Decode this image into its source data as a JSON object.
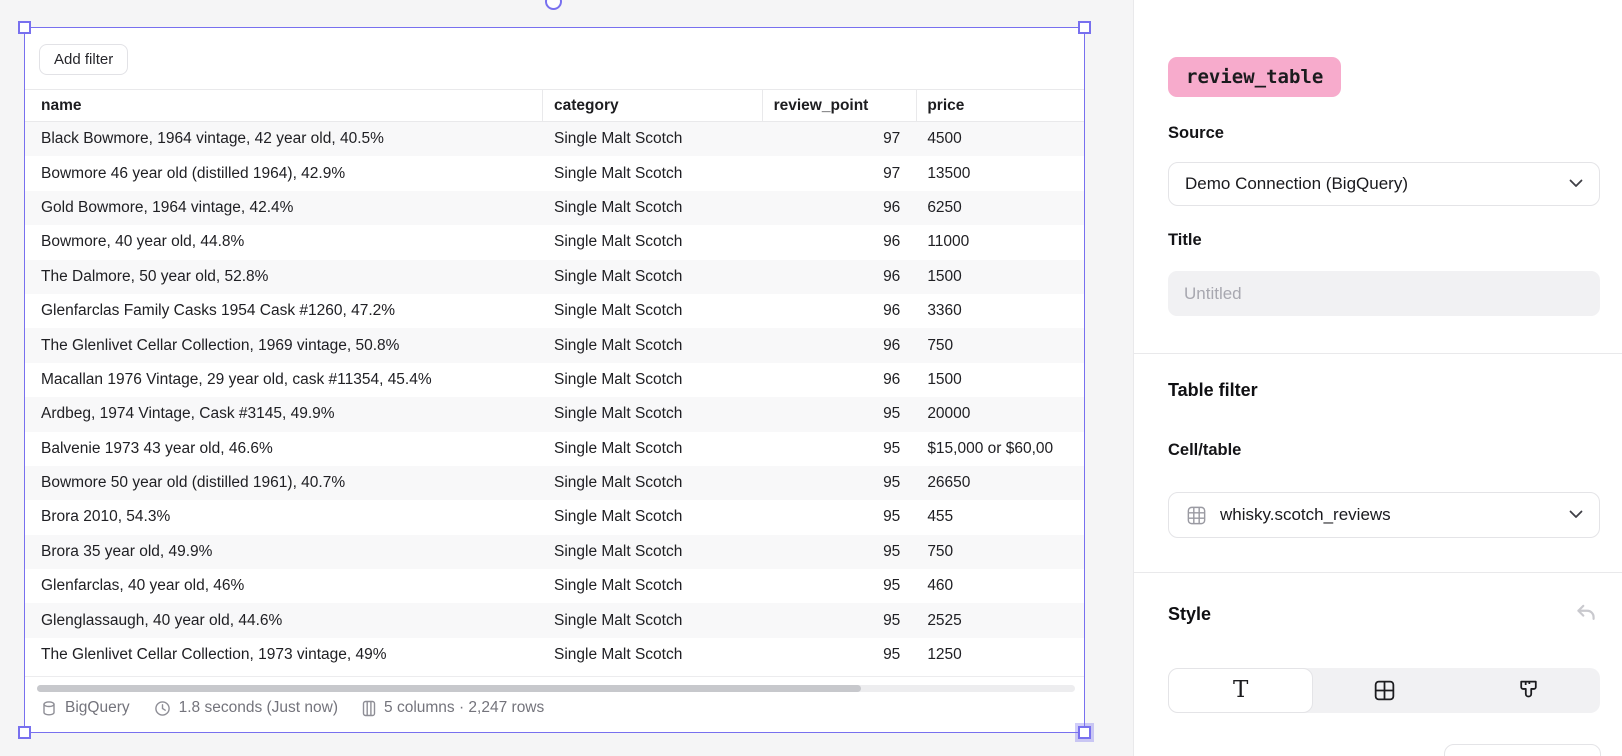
{
  "canvas": {
    "toolbar": {
      "add_filter_label": "Add filter"
    },
    "table": {
      "columns": [
        {
          "key": "name",
          "label": "name",
          "align": "left"
        },
        {
          "key": "category",
          "label": "category",
          "align": "left"
        },
        {
          "key": "review_point",
          "label": "review_point",
          "align": "right"
        },
        {
          "key": "price",
          "label": "price",
          "align": "left"
        }
      ],
      "rows": [
        {
          "name": "Black Bowmore, 1964 vintage, 42 year old, 40.5%",
          "category": "Single Malt Scotch",
          "review_point": "97",
          "price": "4500"
        },
        {
          "name": "Bowmore 46 year old (distilled 1964), 42.9%",
          "category": "Single Malt Scotch",
          "review_point": "97",
          "price": "13500"
        },
        {
          "name": "Gold Bowmore, 1964 vintage, 42.4%",
          "category": "Single Malt Scotch",
          "review_point": "96",
          "price": "6250"
        },
        {
          "name": "Bowmore, 40 year old, 44.8%",
          "category": "Single Malt Scotch",
          "review_point": "96",
          "price": "11000"
        },
        {
          "name": "The Dalmore, 50 year old, 52.8%",
          "category": "Single Malt Scotch",
          "review_point": "96",
          "price": "1500"
        },
        {
          "name": "Glenfarclas Family Casks 1954 Cask #1260, 47.2%",
          "category": "Single Malt Scotch",
          "review_point": "96",
          "price": "3360"
        },
        {
          "name": "The Glenlivet Cellar Collection, 1969 vintage, 50.8%",
          "category": "Single Malt Scotch",
          "review_point": "96",
          "price": "750"
        },
        {
          "name": "Macallan 1976 Vintage, 29 year old, cask #11354, 45.4%",
          "category": "Single Malt Scotch",
          "review_point": "96",
          "price": "1500"
        },
        {
          "name": "Ardbeg, 1974 Vintage, Cask #3145, 49.9%",
          "category": "Single Malt Scotch",
          "review_point": "95",
          "price": "20000"
        },
        {
          "name": "Balvenie 1973 43 year old, 46.6%",
          "category": "Single Malt Scotch",
          "review_point": "95",
          "price": "$15,000 or $60,00"
        },
        {
          "name": "Bowmore 50 year old (distilled 1961), 40.7%",
          "category": "Single Malt Scotch",
          "review_point": "95",
          "price": "26650"
        },
        {
          "name": "Brora 2010, 54.3%",
          "category": "Single Malt Scotch",
          "review_point": "95",
          "price": "455"
        },
        {
          "name": "Brora 35 year old, 49.9%",
          "category": "Single Malt Scotch",
          "review_point": "95",
          "price": "750"
        },
        {
          "name": "Glenfarclas, 40 year old, 46%",
          "category": "Single Malt Scotch",
          "review_point": "95",
          "price": "460"
        },
        {
          "name": "Glenglassaugh, 40 year old, 44.6%",
          "category": "Single Malt Scotch",
          "review_point": "95",
          "price": "2525"
        },
        {
          "name": "The Glenlivet Cellar Collection, 1973 vintage, 49%",
          "category": "Single Malt Scotch",
          "review_point": "95",
          "price": "1250"
        }
      ],
      "footer": {
        "engine": "BigQuery",
        "timing": "1.8 seconds (Just now)",
        "shape": "5 columns · 2,247 rows"
      }
    }
  },
  "panel": {
    "cell_name": "review_table",
    "source": {
      "label": "Source",
      "value": "Demo Connection (BigQuery)"
    },
    "title": {
      "label": "Title",
      "placeholder": "Untitled"
    },
    "table_filter": {
      "heading": "Table filter",
      "cell_table_label": "Cell/table",
      "cell_table_value": "whisky.scotch_reviews"
    },
    "style_section": {
      "heading": "Style"
    }
  },
  "icons": {
    "meta": [
      "database-icon",
      "clock-icon",
      "columns-icon"
    ],
    "style_tabs": [
      "text-style-icon",
      "grid-borders-icon",
      "paintbrush-icon"
    ]
  },
  "colors": {
    "selection": "#7870ef",
    "badge_pink": "#f7abcc",
    "canvas_bg": "#f5f5f6",
    "border": "#e9e9eb",
    "row_alt": "#f8f8f9",
    "muted_text": "#74747c"
  }
}
